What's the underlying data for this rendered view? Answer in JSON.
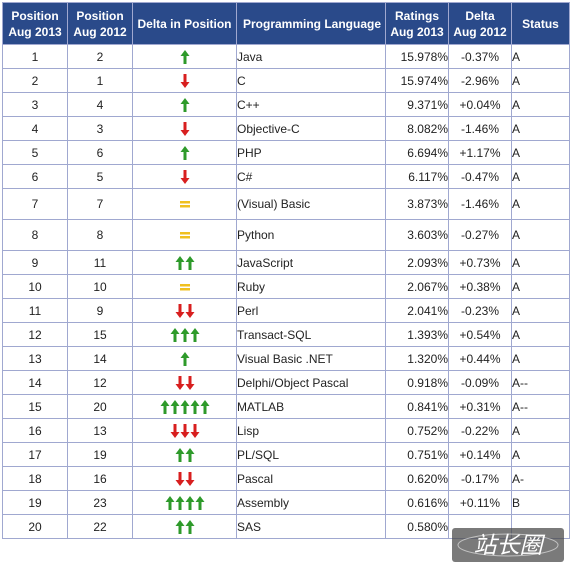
{
  "table": {
    "headers": {
      "pos2013": [
        "Position",
        "Aug 2013"
      ],
      "pos2012": [
        "Position",
        "Aug 2012"
      ],
      "delta_pos": "Delta in Position",
      "language": "Programming Language",
      "ratings": [
        "Ratings",
        "Aug 2013"
      ],
      "delta": [
        "Delta",
        "Aug 2012"
      ],
      "status": "Status"
    },
    "rows": [
      {
        "pos2013": "1",
        "pos2012": "2",
        "arrow_dir": "up",
        "arrow_count": 1,
        "language": "Java",
        "ratings": "15.978%",
        "delta": "-0.37%",
        "status": "A"
      },
      {
        "pos2013": "2",
        "pos2012": "1",
        "arrow_dir": "down",
        "arrow_count": 1,
        "language": "C",
        "ratings": "15.974%",
        "delta": "-2.96%",
        "status": "A"
      },
      {
        "pos2013": "3",
        "pos2012": "4",
        "arrow_dir": "up",
        "arrow_count": 1,
        "language": "C++",
        "ratings": "9.371%",
        "delta": "+0.04%",
        "status": "A"
      },
      {
        "pos2013": "4",
        "pos2012": "3",
        "arrow_dir": "down",
        "arrow_count": 1,
        "language": "Objective-C",
        "ratings": "8.082%",
        "delta": "-1.46%",
        "status": "A"
      },
      {
        "pos2013": "5",
        "pos2012": "6",
        "arrow_dir": "up",
        "arrow_count": 1,
        "language": "PHP",
        "ratings": "6.694%",
        "delta": "+1.17%",
        "status": "A"
      },
      {
        "pos2013": "6",
        "pos2012": "5",
        "arrow_dir": "down",
        "arrow_count": 1,
        "language": "C#",
        "ratings": "6.117%",
        "delta": "-0.47%",
        "status": "A"
      },
      {
        "pos2013": "7",
        "pos2012": "7",
        "arrow_dir": "same",
        "arrow_count": 1,
        "language": "(Visual) Basic",
        "ratings": "3.873%",
        "delta": "-1.46%",
        "status": "A"
      },
      {
        "pos2013": "8",
        "pos2012": "8",
        "arrow_dir": "same",
        "arrow_count": 1,
        "language": "Python",
        "ratings": "3.603%",
        "delta": "-0.27%",
        "status": "A"
      },
      {
        "pos2013": "9",
        "pos2012": "11",
        "arrow_dir": "up",
        "arrow_count": 2,
        "language": "JavaScript",
        "ratings": "2.093%",
        "delta": "+0.73%",
        "status": "A"
      },
      {
        "pos2013": "10",
        "pos2012": "10",
        "arrow_dir": "same",
        "arrow_count": 1,
        "language": "Ruby",
        "ratings": "2.067%",
        "delta": "+0.38%",
        "status": "A"
      },
      {
        "pos2013": "11",
        "pos2012": "9",
        "arrow_dir": "down",
        "arrow_count": 2,
        "language": "Perl",
        "ratings": "2.041%",
        "delta": "-0.23%",
        "status": "A"
      },
      {
        "pos2013": "12",
        "pos2012": "15",
        "arrow_dir": "up",
        "arrow_count": 3,
        "language": "Transact-SQL",
        "ratings": "1.393%",
        "delta": "+0.54%",
        "status": "A"
      },
      {
        "pos2013": "13",
        "pos2012": "14",
        "arrow_dir": "up",
        "arrow_count": 1,
        "language": "Visual Basic .NET",
        "ratings": "1.320%",
        "delta": "+0.44%",
        "status": "A"
      },
      {
        "pos2013": "14",
        "pos2012": "12",
        "arrow_dir": "down",
        "arrow_count": 2,
        "language": "Delphi/Object Pascal",
        "ratings": "0.918%",
        "delta": "-0.09%",
        "status": "A--"
      },
      {
        "pos2013": "15",
        "pos2012": "20",
        "arrow_dir": "up",
        "arrow_count": 5,
        "language": "MATLAB",
        "ratings": "0.841%",
        "delta": "+0.31%",
        "status": "A--"
      },
      {
        "pos2013": "16",
        "pos2012": "13",
        "arrow_dir": "down",
        "arrow_count": 3,
        "language": "Lisp",
        "ratings": "0.752%",
        "delta": "-0.22%",
        "status": "A"
      },
      {
        "pos2013": "17",
        "pos2012": "19",
        "arrow_dir": "up",
        "arrow_count": 2,
        "language": "PL/SQL",
        "ratings": "0.751%",
        "delta": "+0.14%",
        "status": "A"
      },
      {
        "pos2013": "18",
        "pos2012": "16",
        "arrow_dir": "down",
        "arrow_count": 2,
        "language": "Pascal",
        "ratings": "0.620%",
        "delta": "-0.17%",
        "status": "A-"
      },
      {
        "pos2013": "19",
        "pos2012": "23",
        "arrow_dir": "up",
        "arrow_count": 4,
        "language": "Assembly",
        "ratings": "0.616%",
        "delta": "+0.11%",
        "status": "B"
      },
      {
        "pos2013": "20",
        "pos2012": "22",
        "arrow_dir": "up",
        "arrow_count": 2,
        "language": "SAS",
        "ratings": "0.580%",
        "delta": "",
        "status": ""
      }
    ]
  },
  "watermark": {
    "text": "站长圈"
  },
  "colors": {
    "header_bg": "#2a4a8a",
    "header_text": "#ffffff",
    "language_link": "#1f2a9c",
    "arrow_up": "#2e9a2a",
    "arrow_down": "#d81f1f",
    "arrow_same": "#f0c020",
    "border": "#a0a8d0"
  },
  "icons": {
    "up": "green-up-arrow-icon",
    "down": "red-down-arrow-icon",
    "same": "yellow-equals-icon"
  }
}
